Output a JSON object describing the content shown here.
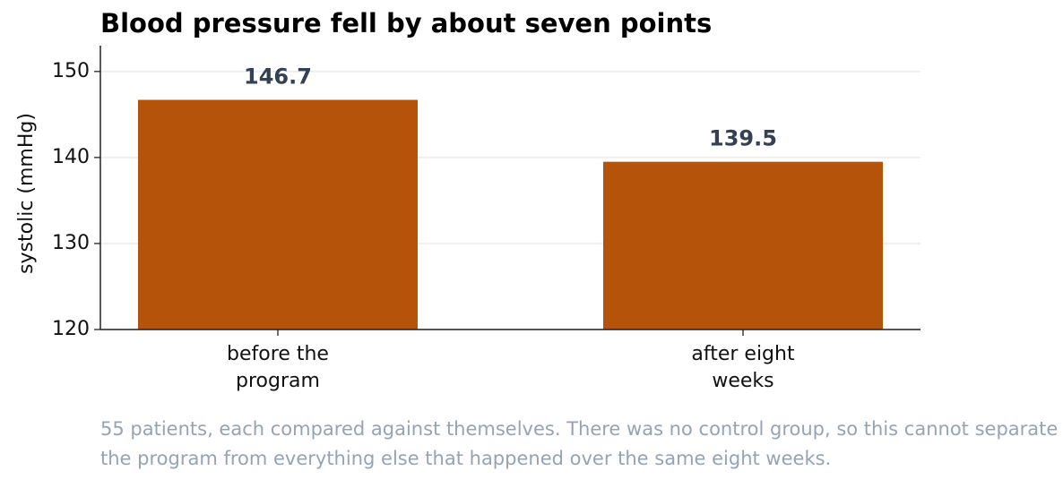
{
  "chart_data": {
    "type": "bar",
    "title": "Blood pressure fell by about seven points",
    "y_label": "systolic (mmHg)",
    "categories": [
      "before the\nprogram",
      "after eight\nweeks"
    ],
    "values": [
      146.7,
      139.5
    ],
    "color": "#b45309",
    "ylim": [
      120,
      153
    ],
    "yticks": [
      120,
      130,
      140,
      150
    ],
    "grid": true,
    "note": "55 patients, each compared against themselves. There was no control group, so this cannot separate the program from everything else that happened over the same eight weeks."
  }
}
